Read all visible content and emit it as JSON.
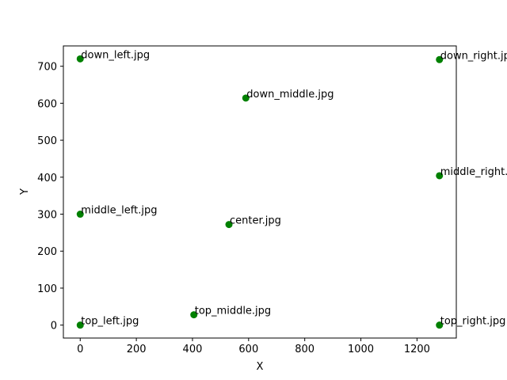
{
  "chart_data": {
    "type": "scatter",
    "title": "",
    "xlabel": "X",
    "ylabel": "Y",
    "xlim": [
      -60,
      1340
    ],
    "ylim": [
      -35,
      755
    ],
    "xticks": [
      0,
      200,
      400,
      600,
      800,
      1000,
      1200
    ],
    "yticks": [
      0,
      100,
      200,
      300,
      400,
      500,
      600,
      700
    ],
    "grid": false,
    "marker_color": "#008000",
    "points": [
      {
        "x": 0,
        "y": 720,
        "label": "down_left.jpg"
      },
      {
        "x": 1280,
        "y": 718,
        "label": "down_right.jpg"
      },
      {
        "x": 590,
        "y": 614,
        "label": "down_middle.jpg"
      },
      {
        "x": 1280,
        "y": 404,
        "label": "middle_right.jpg"
      },
      {
        "x": 0,
        "y": 300,
        "label": "middle_left.jpg"
      },
      {
        "x": 530,
        "y": 272,
        "label": "center.jpg"
      },
      {
        "x": 405,
        "y": 28,
        "label": "top_middle.jpg"
      },
      {
        "x": 0,
        "y": 0,
        "label": "top_left.jpg"
      },
      {
        "x": 1280,
        "y": 0,
        "label": "top_right.jpg"
      }
    ]
  }
}
